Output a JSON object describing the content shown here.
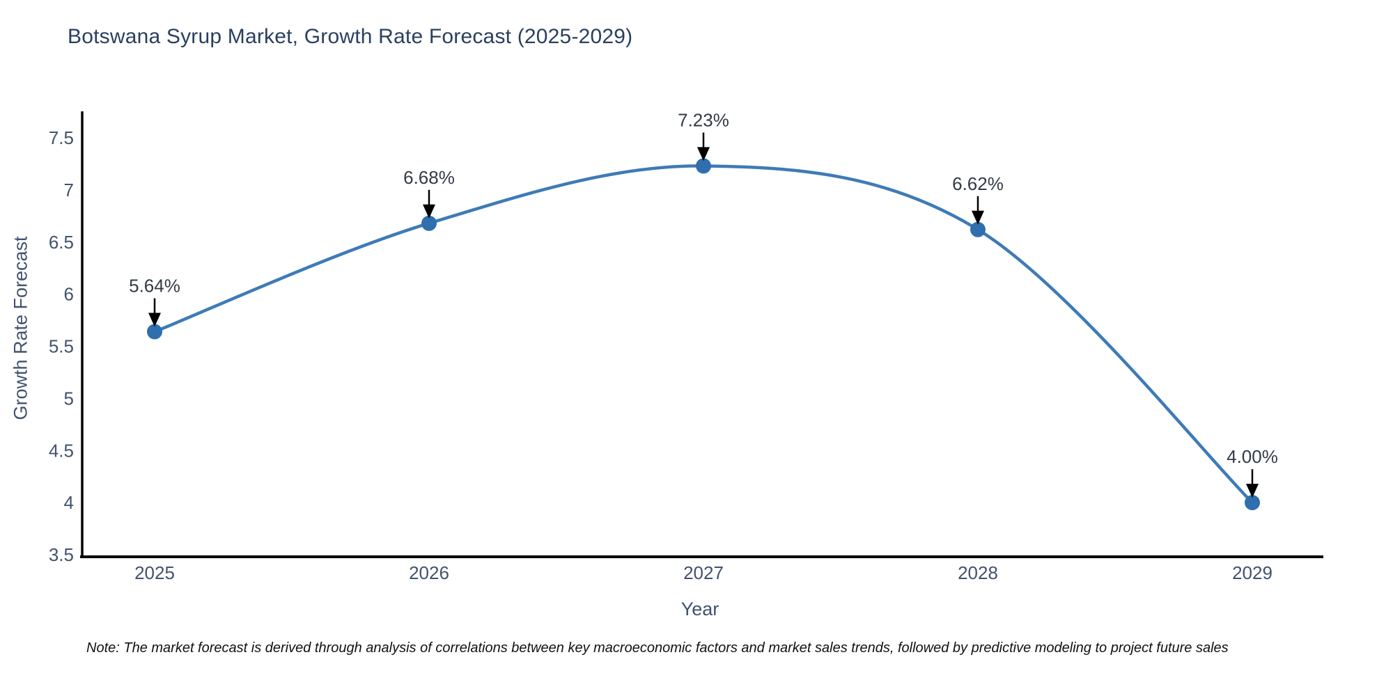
{
  "chart_data": {
    "type": "line",
    "title": "Botswana Syrup Market, Growth Rate Forecast (2025-2029)",
    "xlabel": "Year",
    "ylabel": "Growth Rate Forecast",
    "x": [
      "2025",
      "2026",
      "2027",
      "2028",
      "2029"
    ],
    "values": [
      5.64,
      6.68,
      7.23,
      6.62,
      4.0
    ],
    "point_labels": [
      "5.64%",
      "6.68%",
      "7.23%",
      "6.62%",
      "4.00%"
    ],
    "ylim": [
      3.5,
      7.5
    ],
    "yticks": [
      3.5,
      4,
      4.5,
      5,
      5.5,
      6,
      6.5,
      7,
      7.5
    ],
    "grid": false,
    "legend": "none",
    "line_color": "#3E7BB6",
    "marker_color": "#2F6FAD",
    "arrow_color": "#000000",
    "axis_color": "#000000"
  },
  "note": {
    "text": "Note: The market forecast is derived through analysis of correlations between key macroeconomic factors and market sales trends, followed by predictive modeling to project future sales"
  }
}
